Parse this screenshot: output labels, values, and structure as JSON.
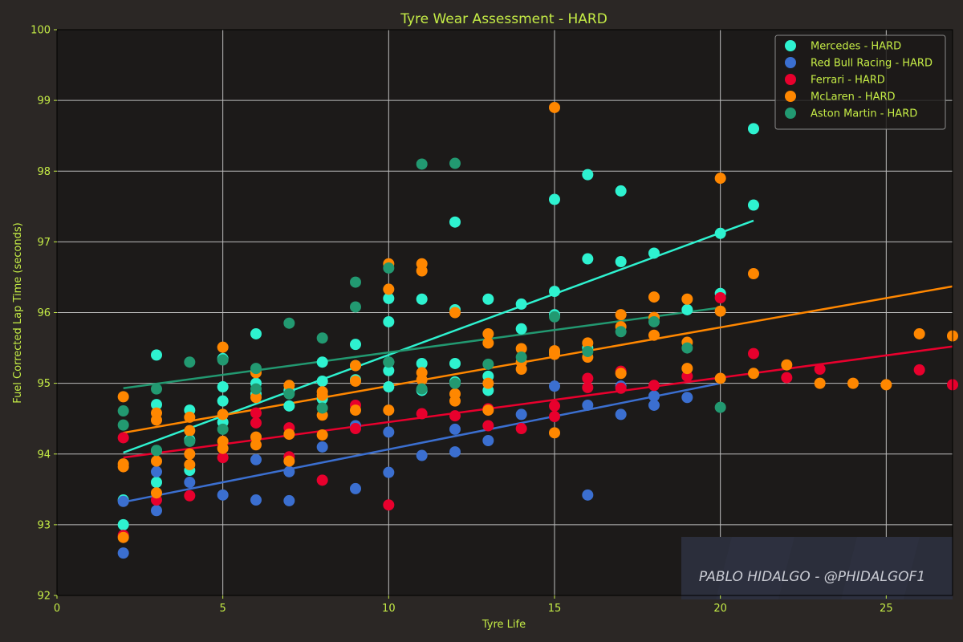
{
  "chart_data": {
    "type": "scatter",
    "title": "Tyre Wear Assessment - HARD",
    "xlabel": "Tyre Life",
    "ylabel": "Fuel Corrected Lap Time (seconds)",
    "xlim": [
      0,
      27
    ],
    "ylim": [
      92,
      100
    ],
    "xticks": [
      0,
      5,
      10,
      15,
      20,
      25
    ],
    "yticks": [
      92,
      93,
      94,
      95,
      96,
      97,
      98,
      99,
      100
    ],
    "grid": true,
    "legend_position": "top-right",
    "series": [
      {
        "name": "Mercedes - HARD",
        "color": "#2ef2d0",
        "trend": [
          [
            2,
            94.02
          ],
          [
            21,
            97.3
          ]
        ],
        "points": [
          [
            2,
            93.35
          ],
          [
            2,
            93.0
          ],
          [
            3,
            95.4
          ],
          [
            3,
            94.7
          ],
          [
            3,
            93.6
          ],
          [
            3,
            94.05
          ],
          [
            4,
            94.62
          ],
          [
            4,
            94.2
          ],
          [
            4,
            93.77
          ],
          [
            5,
            95.35
          ],
          [
            5,
            94.95
          ],
          [
            5,
            94.75
          ],
          [
            5,
            94.45
          ],
          [
            6,
            95.7
          ],
          [
            6,
            95.0
          ],
          [
            6,
            94.85
          ],
          [
            7,
            94.9
          ],
          [
            7,
            94.68
          ],
          [
            8,
            95.3
          ],
          [
            8,
            95.03
          ],
          [
            8,
            94.78
          ],
          [
            9,
            95.55
          ],
          [
            9,
            95.25
          ],
          [
            9,
            95.05
          ],
          [
            10,
            96.2
          ],
          [
            10,
            95.87
          ],
          [
            10,
            95.3
          ],
          [
            10,
            95.18
          ],
          [
            10,
            94.95
          ],
          [
            11,
            96.19
          ],
          [
            11,
            95.28
          ],
          [
            11,
            94.9
          ],
          [
            12,
            97.28
          ],
          [
            12,
            96.04
          ],
          [
            12,
            95.28
          ],
          [
            12,
            95.02
          ],
          [
            13,
            96.19
          ],
          [
            13,
            95.1
          ],
          [
            13,
            94.9
          ],
          [
            14,
            96.12
          ],
          [
            14,
            95.77
          ],
          [
            15,
            97.6
          ],
          [
            15,
            96.3
          ],
          [
            15,
            95.97
          ],
          [
            15,
            95.44
          ],
          [
            16,
            97.95
          ],
          [
            16,
            96.76
          ],
          [
            16,
            95.5
          ],
          [
            17,
            97.72
          ],
          [
            17,
            96.72
          ],
          [
            18,
            96.84
          ],
          [
            19,
            96.04
          ],
          [
            20,
            97.12
          ],
          [
            20,
            96.27
          ],
          [
            21,
            98.6
          ],
          [
            21,
            97.52
          ]
        ]
      },
      {
        "name": "Red Bull Racing - HARD",
        "color": "#3b6fd0",
        "trend": [
          [
            2,
            93.32
          ],
          [
            20,
            95.0
          ]
        ],
        "points": [
          [
            2,
            93.33
          ],
          [
            2,
            92.6
          ],
          [
            3,
            93.2
          ],
          [
            3,
            93.75
          ],
          [
            4,
            93.6
          ],
          [
            5,
            93.42
          ],
          [
            6,
            93.92
          ],
          [
            6,
            93.35
          ],
          [
            7,
            93.75
          ],
          [
            7,
            93.34
          ],
          [
            8,
            94.1
          ],
          [
            9,
            93.51
          ],
          [
            9,
            94.4
          ],
          [
            10,
            94.31
          ],
          [
            10,
            93.74
          ],
          [
            11,
            93.98
          ],
          [
            12,
            94.35
          ],
          [
            12,
            94.03
          ],
          [
            13,
            94.19
          ],
          [
            14,
            94.56
          ],
          [
            15,
            94.96
          ],
          [
            16,
            94.69
          ],
          [
            16,
            93.42
          ],
          [
            17,
            94.56
          ],
          [
            17,
            94.96
          ],
          [
            18,
            94.82
          ],
          [
            18,
            94.69
          ],
          [
            19,
            94.8
          ]
        ]
      },
      {
        "name": "Ferrari - HARD",
        "color": "#e8002d",
        "trend": [
          [
            2,
            93.95
          ],
          [
            27,
            95.52
          ]
        ],
        "points": [
          [
            2,
            94.23
          ],
          [
            2,
            92.85
          ],
          [
            3,
            93.35
          ],
          [
            4,
            93.41
          ],
          [
            5,
            93.95
          ],
          [
            6,
            94.58
          ],
          [
            6,
            94.44
          ],
          [
            7,
            94.37
          ],
          [
            7,
            93.96
          ],
          [
            8,
            93.63
          ],
          [
            9,
            94.69
          ],
          [
            9,
            94.36
          ],
          [
            10,
            93.28
          ],
          [
            11,
            94.57
          ],
          [
            12,
            94.54
          ],
          [
            13,
            94.4
          ],
          [
            13,
            94.64
          ],
          [
            14,
            94.36
          ],
          [
            15,
            94.68
          ],
          [
            15,
            94.53
          ],
          [
            16,
            95.07
          ],
          [
            16,
            94.94
          ],
          [
            17,
            95.17
          ],
          [
            17,
            94.93
          ],
          [
            18,
            94.97
          ],
          [
            19,
            95.1
          ],
          [
            20,
            96.21
          ],
          [
            21,
            95.42
          ],
          [
            22,
            95.08
          ],
          [
            23,
            95.2
          ],
          [
            26,
            95.19
          ],
          [
            27,
            94.98
          ]
        ]
      },
      {
        "name": "McLaren - HARD",
        "color": "#ff8700",
        "trend": [
          [
            2,
            94.3
          ],
          [
            27,
            96.37
          ]
        ],
        "points": [
          [
            2,
            94.81
          ],
          [
            2,
            93.86
          ],
          [
            2,
            93.82
          ],
          [
            2,
            92.82
          ],
          [
            3,
            94.58
          ],
          [
            3,
            94.48
          ],
          [
            3,
            93.9
          ],
          [
            3,
            93.45
          ],
          [
            4,
            94.52
          ],
          [
            4,
            94.33
          ],
          [
            4,
            94.0
          ],
          [
            4,
            93.85
          ],
          [
            5,
            95.51
          ],
          [
            5,
            94.56
          ],
          [
            5,
            94.18
          ],
          [
            5,
            94.08
          ],
          [
            6,
            95.15
          ],
          [
            6,
            94.8
          ],
          [
            6,
            94.24
          ],
          [
            6,
            94.13
          ],
          [
            7,
            94.97
          ],
          [
            7,
            94.28
          ],
          [
            7,
            93.9
          ],
          [
            8,
            94.88
          ],
          [
            8,
            94.83
          ],
          [
            8,
            94.55
          ],
          [
            8,
            94.27
          ],
          [
            9,
            95.25
          ],
          [
            9,
            95.03
          ],
          [
            9,
            94.62
          ],
          [
            10,
            96.69
          ],
          [
            10,
            96.33
          ],
          [
            10,
            94.62
          ],
          [
            11,
            96.69
          ],
          [
            11,
            96.59
          ],
          [
            11,
            95.15
          ],
          [
            11,
            95.05
          ],
          [
            12,
            96.0
          ],
          [
            12,
            94.85
          ],
          [
            12,
            94.75
          ],
          [
            13,
            95.7
          ],
          [
            13,
            95.57
          ],
          [
            13,
            95.0
          ],
          [
            13,
            94.62
          ],
          [
            14,
            95.49
          ],
          [
            14,
            95.3
          ],
          [
            14,
            95.2
          ],
          [
            15,
            98.9
          ],
          [
            15,
            95.46
          ],
          [
            15,
            95.41
          ],
          [
            15,
            94.3
          ],
          [
            16,
            95.57
          ],
          [
            16,
            95.37
          ],
          [
            17,
            95.97
          ],
          [
            17,
            95.8
          ],
          [
            17,
            95.14
          ],
          [
            18,
            96.22
          ],
          [
            18,
            95.93
          ],
          [
            18,
            95.68
          ],
          [
            19,
            96.19
          ],
          [
            19,
            95.58
          ],
          [
            19,
            95.21
          ],
          [
            20,
            97.9
          ],
          [
            20,
            96.02
          ],
          [
            20,
            95.07
          ],
          [
            21,
            96.55
          ],
          [
            21,
            95.14
          ],
          [
            22,
            95.26
          ],
          [
            23,
            95.0
          ],
          [
            24,
            95.0
          ],
          [
            25,
            94.98
          ],
          [
            26,
            95.7
          ],
          [
            27,
            95.67
          ]
        ]
      },
      {
        "name": "Aston Martin - HARD",
        "color": "#229971",
        "trend": [
          [
            2,
            94.93
          ],
          [
            20,
            96.07
          ]
        ],
        "points": [
          [
            2,
            94.61
          ],
          [
            2,
            94.41
          ],
          [
            3,
            94.92
          ],
          [
            3,
            94.05
          ],
          [
            4,
            95.3
          ],
          [
            4,
            94.18
          ],
          [
            5,
            95.33
          ],
          [
            5,
            94.35
          ],
          [
            6,
            95.21
          ],
          [
            6,
            94.92
          ],
          [
            7,
            95.85
          ],
          [
            7,
            94.85
          ],
          [
            8,
            95.64
          ],
          [
            8,
            94.65
          ],
          [
            9,
            96.43
          ],
          [
            9,
            96.08
          ],
          [
            10,
            96.63
          ],
          [
            10,
            95.3
          ],
          [
            11,
            98.1
          ],
          [
            11,
            94.92
          ],
          [
            12,
            98.11
          ],
          [
            12,
            95.0
          ],
          [
            13,
            95.27
          ],
          [
            14,
            95.37
          ],
          [
            15,
            95.94
          ],
          [
            16,
            95.45
          ],
          [
            17,
            95.73
          ],
          [
            18,
            95.87
          ],
          [
            19,
            95.5
          ],
          [
            20,
            94.66
          ]
        ]
      }
    ]
  },
  "watermark": "PABLO HIDALGO - @PHIDALGOF1",
  "colors": {
    "figure_background": "#2b2725",
    "axes_background": "#1c1a19",
    "grid": "#bdbdbd",
    "text": "#c5ec46",
    "legend_text": "#c5ec46",
    "watermark_panel": "#2b2e3b",
    "watermark_text": "#c9cbd3"
  }
}
